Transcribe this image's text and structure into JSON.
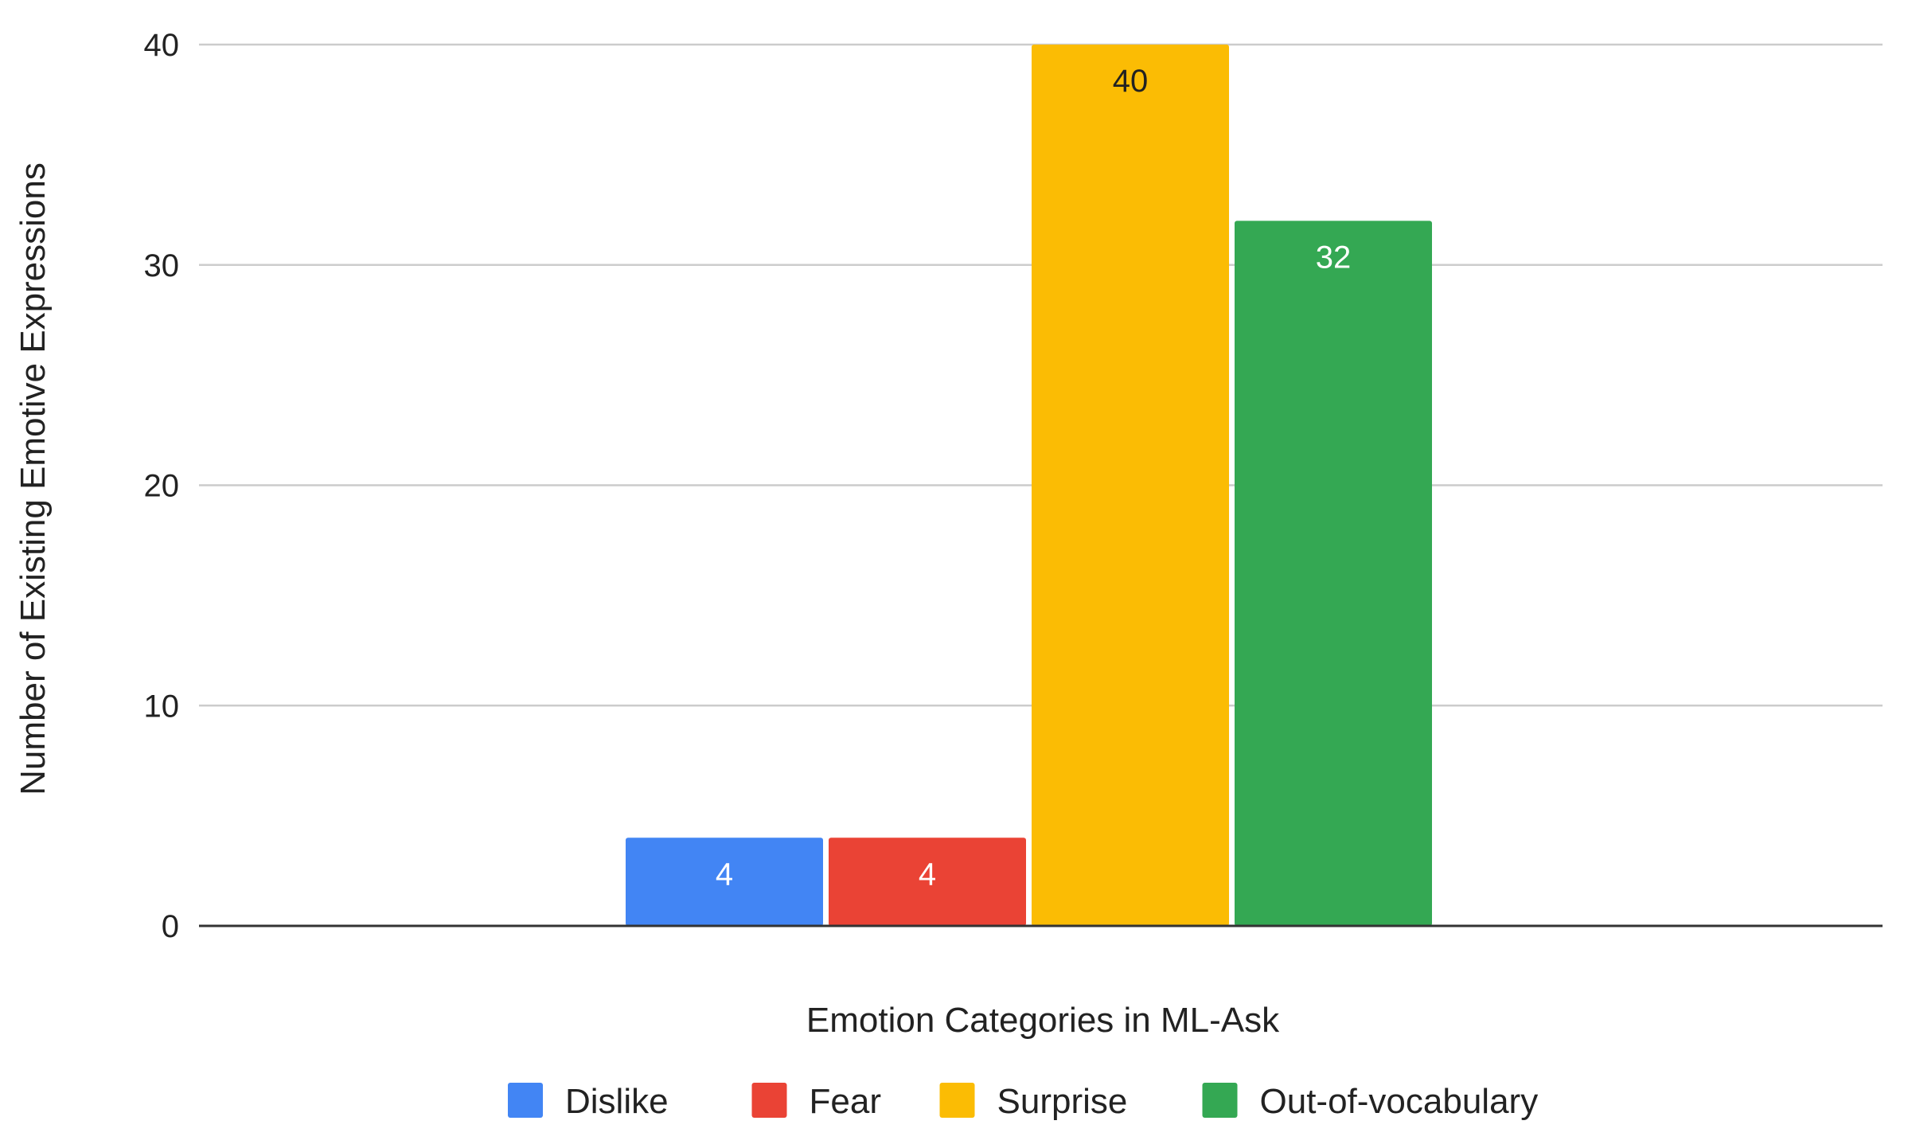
{
  "chart_data": {
    "type": "bar",
    "title": "",
    "xlabel": "Emotion Categories in ML-Ask",
    "ylabel": "Number of Existing Emotive Expressions",
    "ylim": [
      0,
      40
    ],
    "yticks": [
      0,
      10,
      20,
      30,
      40
    ],
    "grid": true,
    "legend_position": "bottom",
    "series": [
      {
        "name": "Dislike",
        "values": [
          4
        ],
        "color": "#4285F4",
        "label_color": "#ffffff"
      },
      {
        "name": "Fear",
        "values": [
          4
        ],
        "color": "#EA4335",
        "label_color": "#ffffff"
      },
      {
        "name": "Surprise",
        "values": [
          40
        ],
        "color": "#FBBC04",
        "label_color": "#222222"
      },
      {
        "name": "Out-of-vocabulary",
        "values": [
          32
        ],
        "color": "#34A853",
        "label_color": "#ffffff"
      }
    ]
  }
}
